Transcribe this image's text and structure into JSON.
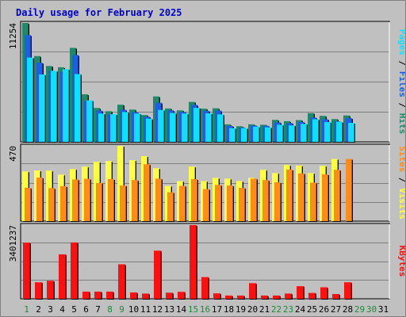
{
  "title": "Daily usage for February 2025",
  "colors": {
    "background": "#c0c0c0",
    "plot_background": "#c0c0c0",
    "gridline": "#808080",
    "hits": "#1f8a6a",
    "files": "#1c5ee8",
    "pages": "#10e0ff",
    "visits": "#ffff40",
    "sites": "#ff8c1a",
    "kbytes": "#ff1010",
    "title": "#0000cc",
    "weekend_label": "#1f8a3a",
    "weekday_label": "#000000"
  },
  "right_labels": {
    "pages": "Pages",
    "files": "Files",
    "hits": "Hits",
    "sites": "Sites",
    "visits": "Visits",
    "kbytes": "KBytes",
    "separator": " / "
  },
  "x_labels": [
    "1",
    "2",
    "3",
    "4",
    "5",
    "6",
    "7",
    "8",
    "9",
    "10",
    "11",
    "12",
    "13",
    "14",
    "15",
    "16",
    "17",
    "18",
    "19",
    "20",
    "21",
    "22",
    "23",
    "24",
    "25",
    "26",
    "27",
    "28",
    "29",
    "30",
    "31"
  ],
  "weekend_days": [
    1,
    8,
    9,
    15,
    16,
    22,
    23,
    29,
    30
  ],
  "chart_data": [
    {
      "type": "bar",
      "panel": "hits-files-pages",
      "ymax_label": "11254",
      "ylim": [
        0,
        11254
      ],
      "categories": [
        "1",
        "2",
        "3",
        "4",
        "5",
        "6",
        "7",
        "8",
        "9",
        "10",
        "11",
        "12",
        "13",
        "14",
        "15",
        "16",
        "17",
        "18",
        "19",
        "20",
        "21",
        "22",
        "23",
        "24",
        "25",
        "26",
        "27",
        "28",
        "29",
        "30",
        "31"
      ],
      "series": [
        {
          "name": "Hits",
          "values": [
            11254,
            8120,
            7180,
            7060,
            8900,
            4500,
            3210,
            2900,
            3520,
            3060,
            2540,
            4300,
            3160,
            2980,
            3780,
            3140,
            3180,
            1660,
            1480,
            1660,
            1620,
            2080,
            1960,
            2060,
            2720,
            2460,
            2160,
            2500,
            null,
            null,
            null
          ]
        },
        {
          "name": "Files",
          "values": [
            10100,
            7480,
            6720,
            6640,
            8220,
            3860,
            2960,
            2580,
            3040,
            2800,
            2380,
            3700,
            2980,
            2820,
            3500,
            2940,
            2960,
            1500,
            1360,
            1540,
            1520,
            1840,
            1780,
            1880,
            2300,
            2140,
            1940,
            2240,
            null,
            null,
            null
          ]
        },
        {
          "name": "Pages",
          "values": [
            7980,
            6380,
            6720,
            6880,
            6420,
            3920,
            2680,
            2620,
            2820,
            2680,
            2200,
            3020,
            2740,
            2680,
            3220,
            2700,
            2600,
            1300,
            1300,
            1440,
            1380,
            1620,
            1560,
            1700,
            2140,
            1880,
            1900,
            1800,
            null,
            null,
            null
          ]
        }
      ]
    },
    {
      "type": "bar",
      "panel": "visits-sites",
      "ymax_label": "470",
      "ylim": [
        0,
        470
      ],
      "categories": [
        "1",
        "2",
        "3",
        "4",
        "5",
        "6",
        "7",
        "8",
        "9",
        "10",
        "11",
        "12",
        "13",
        "14",
        "15",
        "16",
        "17",
        "18",
        "19",
        "20",
        "21",
        "22",
        "23",
        "24",
        "25",
        "26",
        "27",
        "28",
        "29",
        "30",
        "31"
      ],
      "series": [
        {
          "name": "Visits",
          "values": [
            310,
            316,
            315,
            290,
            325,
            340,
            370,
            375,
            470,
            380,
            405,
            330,
            220,
            250,
            340,
            250,
            270,
            265,
            250,
            270,
            320,
            300,
            350,
            347,
            300,
            345,
            388,
            null,
            null,
            null,
            null
          ]
        },
        {
          "name": "Sites",
          "values": [
            208,
            272,
            206,
            218,
            260,
            264,
            238,
            262,
            222,
            256,
            355,
            265,
            180,
            220,
            262,
            200,
            226,
            222,
            208,
            265,
            256,
            242,
            322,
            298,
            240,
            292,
            320,
            388,
            null,
            null,
            null
          ]
        }
      ]
    },
    {
      "type": "bar",
      "panel": "kbytes",
      "ymax_label": "3401237",
      "ylim": [
        0,
        3401237
      ],
      "categories": [
        "1",
        "2",
        "3",
        "4",
        "5",
        "6",
        "7",
        "8",
        "9",
        "10",
        "11",
        "12",
        "13",
        "14",
        "15",
        "16",
        "17",
        "18",
        "19",
        "20",
        "21",
        "22",
        "23",
        "24",
        "25",
        "26",
        "27",
        "28",
        "29",
        "30",
        "31"
      ],
      "series": [
        {
          "name": "KBytes",
          "values": [
            2590000,
            760000,
            830000,
            2050000,
            2600000,
            330000,
            330000,
            330000,
            1590000,
            290000,
            240000,
            2220000,
            280000,
            320000,
            3401237,
            1000000,
            250000,
            150000,
            150000,
            720000,
            150000,
            150000,
            240000,
            580000,
            270000,
            530000,
            220000,
            760000,
            null,
            null,
            null
          ]
        }
      ]
    }
  ]
}
